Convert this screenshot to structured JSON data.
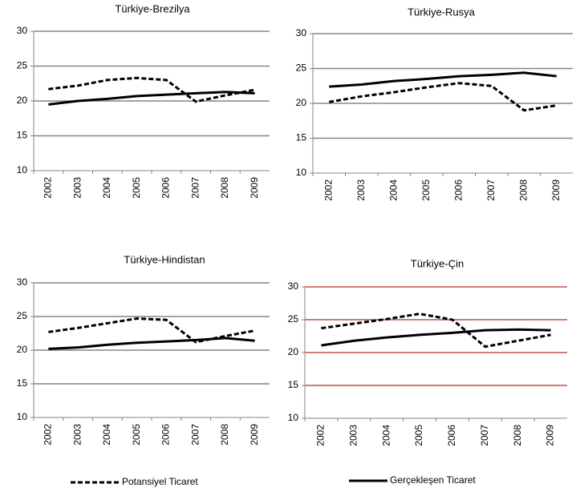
{
  "chart_data": [
    {
      "type": "line",
      "title": "Türkiye-Brezilya",
      "categories": [
        "2002",
        "2003",
        "2004",
        "2005",
        "2006",
        "2007",
        "2008",
        "2009"
      ],
      "ylim": [
        10,
        30
      ],
      "yticks": [
        10,
        15,
        20,
        25,
        30
      ],
      "grid": true,
      "grid_color": "#868686",
      "series": [
        {
          "style": "dashed",
          "color": "#000000",
          "values": [
            21.7,
            22.2,
            23.0,
            23.3,
            23.0,
            19.9,
            20.8,
            21.6
          ]
        },
        {
          "style": "solid",
          "color": "#000000",
          "values": [
            19.5,
            20.0,
            20.3,
            20.7,
            20.9,
            21.1,
            21.3,
            21.1
          ]
        }
      ]
    },
    {
      "type": "line",
      "title": "Türkiye-Rusya",
      "categories": [
        "2002",
        "2003",
        "2004",
        "2005",
        "2006",
        "2007",
        "2008",
        "2009"
      ],
      "ylim": [
        10,
        30
      ],
      "yticks": [
        10,
        15,
        20,
        25,
        30
      ],
      "grid": true,
      "grid_color": "#868686",
      "series": [
        {
          "style": "dashed",
          "color": "#000000",
          "values": [
            20.2,
            21.0,
            21.6,
            22.3,
            22.9,
            22.5,
            19.0,
            19.7
          ]
        },
        {
          "style": "solid",
          "color": "#000000",
          "values": [
            22.4,
            22.7,
            23.2,
            23.5,
            23.9,
            24.1,
            24.4,
            23.9
          ]
        }
      ]
    },
    {
      "type": "line",
      "title": "Türkiye-Hindistan",
      "categories": [
        "2002",
        "2003",
        "2004",
        "2005",
        "2006",
        "2007",
        "2008",
        "2009"
      ],
      "ylim": [
        10,
        30
      ],
      "yticks": [
        10,
        15,
        20,
        25,
        30
      ],
      "grid": true,
      "grid_color": "#868686",
      "series": [
        {
          "style": "dashed",
          "color": "#000000",
          "values": [
            22.7,
            23.3,
            24.0,
            24.7,
            24.5,
            21.2,
            22.1,
            22.9
          ]
        },
        {
          "style": "solid",
          "color": "#000000",
          "values": [
            20.2,
            20.4,
            20.8,
            21.1,
            21.3,
            21.5,
            21.8,
            21.4
          ]
        }
      ]
    },
    {
      "type": "line",
      "title": "Türkiye-Çin",
      "categories": [
        "2002",
        "2003",
        "2004",
        "2005",
        "2006",
        "2007",
        "2008",
        "2009"
      ],
      "ylim": [
        10,
        30
      ],
      "yticks": [
        10,
        15,
        20,
        25,
        30
      ],
      "grid": true,
      "grid_color": "#c0504d",
      "series": [
        {
          "style": "dashed",
          "color": "#000000",
          "values": [
            23.7,
            24.4,
            25.1,
            25.9,
            25.0,
            20.9,
            21.8,
            22.7
          ]
        },
        {
          "style": "solid",
          "color": "#000000",
          "values": [
            21.1,
            21.8,
            22.3,
            22.7,
            23.0,
            23.4,
            23.5,
            23.4
          ]
        }
      ]
    }
  ],
  "legend": [
    {
      "name": "Potansiyel Ticaret",
      "style": "dashed",
      "color": "#000000"
    },
    {
      "name": "Gerçekleşen Ticaret",
      "style": "solid",
      "color": "#000000"
    }
  ]
}
